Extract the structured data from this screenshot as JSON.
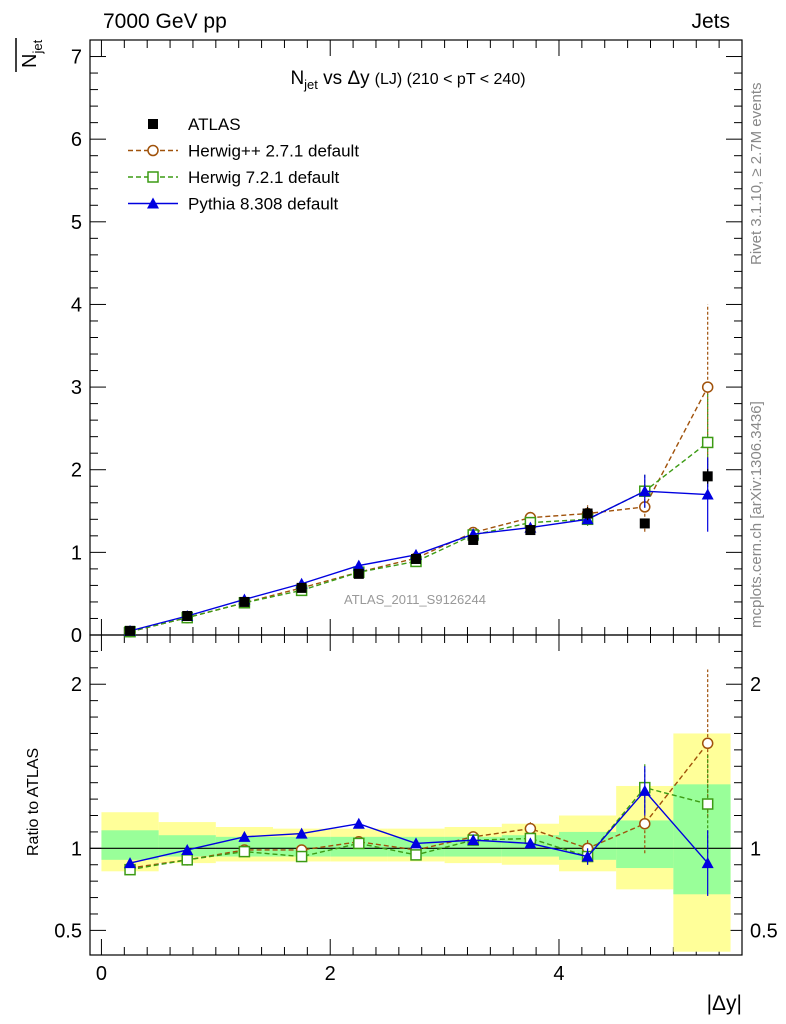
{
  "header": {
    "left": "7000 GeV pp",
    "right": "Jets"
  },
  "side_labels": {
    "rivet": "Rivet 3.1.10, ≥ 2.7M events",
    "mcplots": "mcplots.cern.ch [arXiv:1306.3436]"
  },
  "watermark": "ATLAS_2011_S9126244",
  "title": {
    "main": "N",
    "sub": "jet",
    "vs": " vs Δy",
    "suffix": "(LJ) (210 < pT < 240)"
  },
  "ylabel_top": {
    "main": "N",
    "sub": "jet"
  },
  "ylabel_bottom": "Ratio to ATLAS",
  "xlabel": "|Δy|",
  "colors": {
    "atlas": "#000000",
    "herwigpp": "#a0520b",
    "herwig7": "#3c9b14",
    "pythia": "#0000e0",
    "band_outer": "#ffff99",
    "band_inner": "#99ff99"
  },
  "chart_data": [
    {
      "type": "line",
      "panel": "main",
      "xlim": [
        -0.1,
        5.6
      ],
      "ylim": [
        0,
        7.2
      ],
      "yticks": [
        "0",
        "1",
        "2",
        "3",
        "4",
        "5",
        "6",
        "7"
      ],
      "x": [
        0.25,
        0.75,
        1.25,
        1.75,
        2.25,
        2.75,
        3.25,
        3.75,
        4.25,
        4.75,
        5.3
      ],
      "legend_position": "top-left",
      "series": [
        {
          "name": "ATLAS",
          "marker": "square-filled",
          "values": [
            0.05,
            0.23,
            0.4,
            0.57,
            0.74,
            0.92,
            1.15,
            1.27,
            1.47,
            1.35,
            1.92
          ],
          "err": [
            0.01,
            0.02,
            0.03,
            0.03,
            0.04,
            0.05,
            0.05,
            0.06,
            0.08,
            0.06,
            0.09
          ]
        },
        {
          "name": "Herwig++ 2.7.1 default",
          "marker": "circle-open",
          "style": "dashed",
          "values": [
            0.04,
            0.21,
            0.39,
            0.57,
            0.76,
            0.93,
            1.24,
            1.42,
            1.47,
            1.55,
            3.0
          ],
          "err": [
            0.01,
            0.02,
            0.02,
            0.03,
            0.04,
            0.05,
            0.06,
            0.07,
            0.1,
            0.3,
            1.0
          ]
        },
        {
          "name": "Herwig 7.2.1 default",
          "marker": "square-open",
          "style": "dashed",
          "values": [
            0.04,
            0.21,
            0.39,
            0.54,
            0.76,
            0.89,
            1.21,
            1.36,
            1.4,
            1.74,
            2.33
          ],
          "err": [
            0.01,
            0.02,
            0.02,
            0.03,
            0.04,
            0.05,
            0.05,
            0.06,
            0.08,
            0.2,
            0.6
          ]
        },
        {
          "name": "Pythia 8.308 default",
          "marker": "triangle-filled",
          "style": "solid",
          "values": [
            0.05,
            0.23,
            0.43,
            0.62,
            0.84,
            0.97,
            1.22,
            1.3,
            1.4,
            1.74,
            1.7
          ],
          "err": [
            0.01,
            0.02,
            0.02,
            0.03,
            0.04,
            0.04,
            0.05,
            0.05,
            0.06,
            0.2,
            0.45
          ]
        }
      ]
    },
    {
      "type": "line",
      "panel": "ratio",
      "xlim": [
        -0.1,
        5.6
      ],
      "ylim": [
        0.35,
        2.3
      ],
      "xticks": [
        "0",
        "2",
        "4"
      ],
      "yticks": [
        "0.5",
        "1",
        "2"
      ],
      "x": [
        0.25,
        0.75,
        1.25,
        1.75,
        2.25,
        2.75,
        3.25,
        3.75,
        4.25,
        4.75,
        5.3
      ],
      "bands": {
        "edges": [
          0,
          0.5,
          1.0,
          1.5,
          2.0,
          2.5,
          3.0,
          3.5,
          4.0,
          4.5,
          5.0,
          5.5
        ],
        "outer": [
          [
            0.86,
            1.22
          ],
          [
            0.91,
            1.16
          ],
          [
            0.92,
            1.13
          ],
          [
            0.92,
            1.12
          ],
          [
            0.92,
            1.12
          ],
          [
            0.92,
            1.12
          ],
          [
            0.91,
            1.13
          ],
          [
            0.9,
            1.15
          ],
          [
            0.86,
            1.2
          ],
          [
            0.75,
            1.38
          ],
          [
            0.37,
            1.7
          ]
        ],
        "inner": [
          [
            0.93,
            1.11
          ],
          [
            0.95,
            1.08
          ],
          [
            0.95,
            1.07
          ],
          [
            0.95,
            1.07
          ],
          [
            0.95,
            1.07
          ],
          [
            0.95,
            1.07
          ],
          [
            0.95,
            1.07
          ],
          [
            0.95,
            1.08
          ],
          [
            0.93,
            1.1
          ],
          [
            0.88,
            1.17
          ],
          [
            0.72,
            1.39
          ]
        ]
      },
      "series": [
        {
          "name": "Herwig++ 2.7.1 default",
          "values": [
            0.88,
            0.93,
            0.99,
            0.99,
            1.04,
            0.99,
            1.07,
            1.12,
            1.0,
            1.15,
            1.64
          ],
          "err": [
            0.02,
            0.02,
            0.02,
            0.02,
            0.02,
            0.02,
            0.03,
            0.04,
            0.06,
            0.18,
            0.45
          ]
        },
        {
          "name": "Herwig 7.2.1 default",
          "values": [
            0.87,
            0.93,
            0.98,
            0.95,
            1.03,
            0.96,
            1.05,
            1.06,
            0.95,
            1.37,
            1.27
          ],
          "err": [
            0.02,
            0.02,
            0.02,
            0.02,
            0.02,
            0.02,
            0.03,
            0.03,
            0.05,
            0.15,
            0.3
          ]
        },
        {
          "name": "Pythia 8.308 default",
          "values": [
            0.91,
            0.99,
            1.07,
            1.09,
            1.15,
            1.03,
            1.05,
            1.03,
            0.95,
            1.35,
            0.91
          ],
          "err": [
            0.02,
            0.02,
            0.02,
            0.02,
            0.02,
            0.02,
            0.03,
            0.03,
            0.05,
            0.15,
            0.2
          ]
        }
      ]
    }
  ]
}
